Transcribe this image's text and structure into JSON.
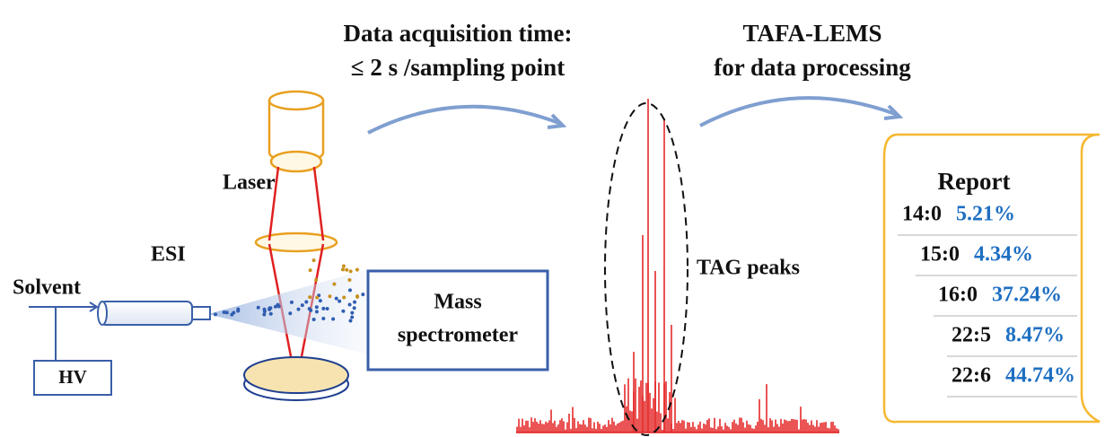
{
  "captions": {
    "acquisition": [
      "Data acquisition time:",
      "≤ 2 s /sampling point"
    ],
    "processing": [
      "TAFA-LEMS",
      "for data processing"
    ]
  },
  "labels": {
    "laser": "Laser",
    "esi": "ESI",
    "solvent": "Solvent",
    "hv": "HV",
    "mass_spectrometer": [
      "Mass",
      "spectrometer"
    ],
    "tag_peaks": "TAG peaks"
  },
  "report": {
    "title": "Report",
    "rows": [
      {
        "fatty_acid": "14:0",
        "percent": "5.21%"
      },
      {
        "fatty_acid": "15:0",
        "percent": "4.34%"
      },
      {
        "fatty_acid": "16:0",
        "percent": "37.24%"
      },
      {
        "fatty_acid": "22:5",
        "percent": "8.47%"
      },
      {
        "fatty_acid": "22:6",
        "percent": "44.74%"
      }
    ]
  }
}
